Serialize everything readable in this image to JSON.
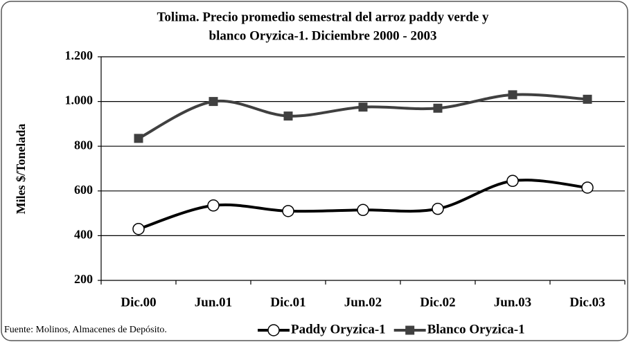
{
  "chart_data": {
    "type": "line",
    "title": [
      "Tolima. Precio promedio semestral del arroz paddy verde y",
      "blanco Oryzica-1. Diciembre 2000 - 2003"
    ],
    "y_label": "Miles $/Tonelada",
    "note": "Fuente: Molinos, Almacenes de Depósito.",
    "categories": [
      "Dic.00",
      "Jun.01",
      "Dic.01",
      "Jun.02",
      "Dic.02",
      "Jun.03",
      "Dic.03"
    ],
    "series": [
      {
        "name": "Paddy Oryzica-1",
        "color": "#000000",
        "marker": "circle",
        "values": [
          430,
          535,
          510,
          515,
          520,
          645,
          615
        ]
      },
      {
        "name": "Blanco Oryzica-1",
        "color": "#404040",
        "marker": "square",
        "values": [
          835,
          1000,
          935,
          975,
          970,
          1030,
          1010
        ]
      }
    ],
    "ylim": [
      200,
      1200
    ],
    "yticks": [
      200,
      400,
      600,
      800,
      {
        "value": 1000,
        "label": "1.000"
      },
      {
        "value": 1200,
        "label": "1.200"
      }
    ],
    "grid": true,
    "legend": "bottom-right"
  }
}
